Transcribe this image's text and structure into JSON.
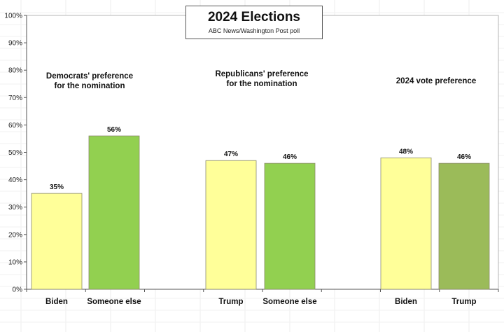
{
  "chart_data": {
    "type": "bar",
    "title": "2024 Elections",
    "subtitle": "ABC News/Washington Post poll",
    "ylim": [
      0,
      100
    ],
    "y_ticks": [
      "0%",
      "10%",
      "20%",
      "30%",
      "40%",
      "50%",
      "60%",
      "70%",
      "80%",
      "90%",
      "100%"
    ],
    "grid": false,
    "groups": [
      {
        "title": "Democrats' preference\nfor the nomination",
        "bars": [
          {
            "category": "Biden",
            "value": 35,
            "label": "35%",
            "color": "#ffff99"
          },
          {
            "category": "Someone else",
            "value": 56,
            "label": "56%",
            "color": "#92d050"
          }
        ]
      },
      {
        "title": "Republicans' preference\nfor the nomination",
        "bars": [
          {
            "category": "Trump",
            "value": 47,
            "label": "47%",
            "color": "#ffff99"
          },
          {
            "category": "Someone else",
            "value": 46,
            "label": "46%",
            "color": "#92d050"
          }
        ]
      },
      {
        "title": "2024 vote preference",
        "bars": [
          {
            "category": "Biden",
            "value": 48,
            "label": "48%",
            "color": "#ffff99"
          },
          {
            "category": "Trump",
            "value": 46,
            "label": "46%",
            "color": "#9bbb59"
          }
        ]
      }
    ]
  }
}
